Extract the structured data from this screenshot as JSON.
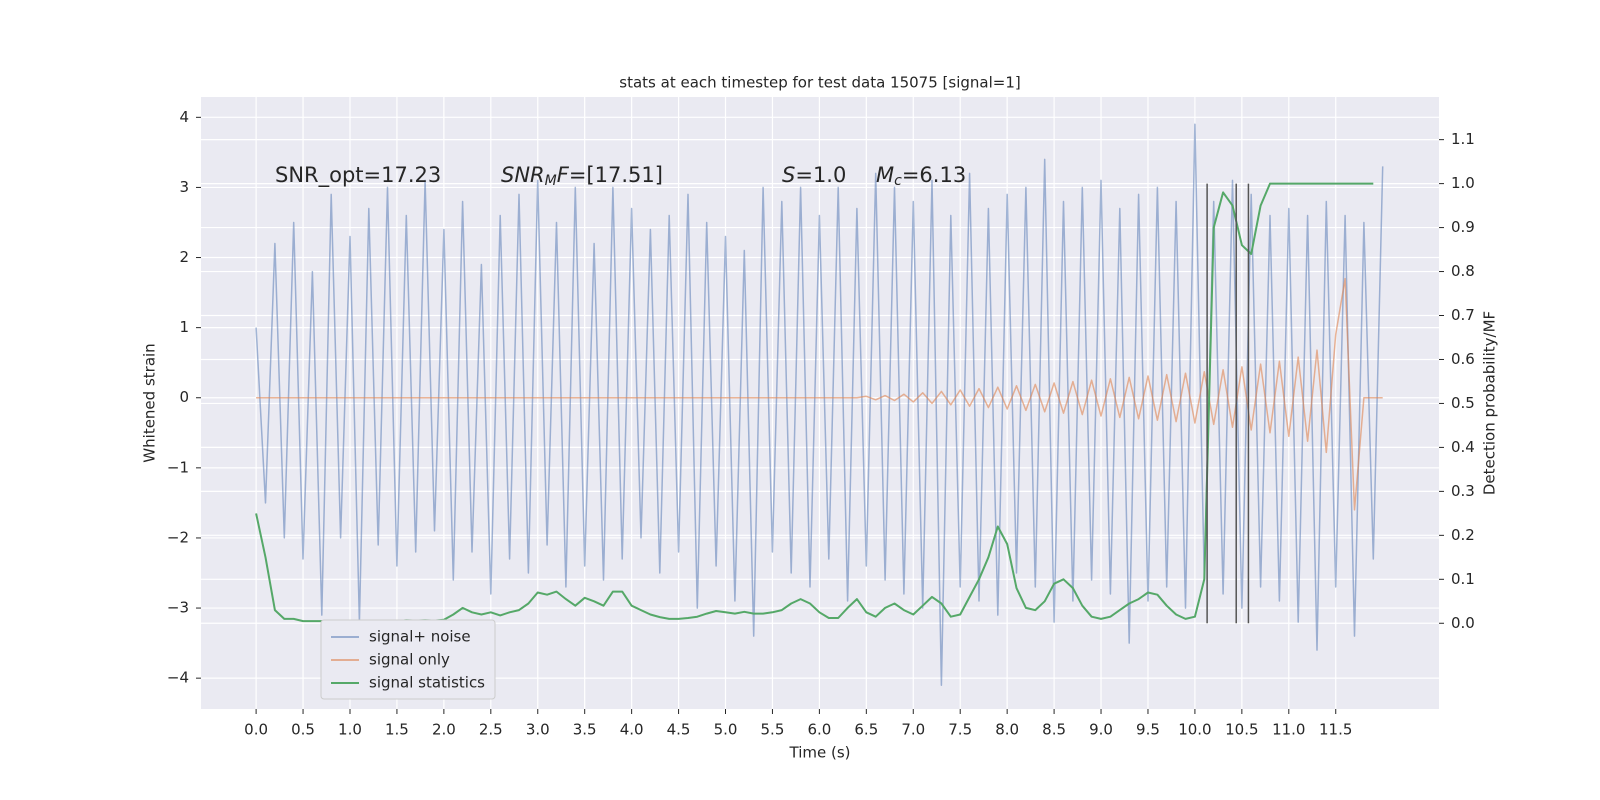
{
  "chart_data": {
    "type": "line",
    "title": "stats at each timestep for test data 15075 [signal=1]",
    "xlabel": "Time (s)",
    "ylabel": "Whitened strain",
    "y2label": "Detection probability/MF",
    "xlim": [
      -0.587,
      12.6
    ],
    "ylim": [
      -4.44,
      4.29
    ],
    "y2lim": [
      -0.195,
      1.197
    ],
    "xticks": [
      {
        "value": 0,
        "label": "0.0"
      },
      0.5,
      {
        "value": 1,
        "label": "1.0"
      },
      1.5,
      {
        "value": 2,
        "label": "2.0"
      },
      2.5,
      {
        "value": 3,
        "label": "3.0"
      },
      3.5,
      {
        "value": 4,
        "label": "4.0"
      },
      4.5,
      {
        "value": 5,
        "label": "5.0"
      },
      5.5,
      {
        "value": 6,
        "label": "6.0"
      },
      6.5,
      {
        "value": 7,
        "label": "7.0"
      },
      7.5,
      {
        "value": 8,
        "label": "8.0"
      },
      8.5,
      {
        "value": 9,
        "label": "9.0"
      },
      9.5,
      {
        "value": 10,
        "label": "10.0"
      },
      10.5,
      {
        "value": 11,
        "label": "11.0"
      },
      11.5
    ],
    "yticks": [
      {
        "value": -4,
        "label": "−4"
      },
      {
        "value": -3,
        "label": "−3"
      },
      {
        "value": -2,
        "label": "−2"
      },
      {
        "value": -1,
        "label": "−1"
      },
      0,
      1,
      2,
      3,
      4
    ],
    "y2ticks": [
      {
        "value": 0,
        "label": "0.0"
      },
      0.1,
      0.2,
      0.3,
      0.4,
      0.5,
      0.6,
      0.7,
      0.8,
      0.9,
      {
        "value": 1,
        "label": "1.0"
      },
      1.1
    ],
    "grid": true,
    "legend": "lower left",
    "x": [
      0.0,
      0.1,
      0.2,
      0.3,
      0.4,
      0.5,
      0.6,
      0.7,
      0.8,
      0.9,
      1.0,
      1.1,
      1.2,
      1.3,
      1.4,
      1.5,
      1.6,
      1.7,
      1.8,
      1.9,
      2.0,
      2.1,
      2.2,
      2.3,
      2.4,
      2.5,
      2.6,
      2.7,
      2.8,
      2.9,
      3.0,
      3.1,
      3.2,
      3.3,
      3.4,
      3.5,
      3.6,
      3.7,
      3.8,
      3.9,
      4.0,
      4.1,
      4.2,
      4.3,
      4.4,
      4.5,
      4.6,
      4.7,
      4.8,
      4.9,
      5.0,
      5.1,
      5.2,
      5.3,
      5.4,
      5.5,
      5.6,
      5.7,
      5.8,
      5.9,
      6.0,
      6.1,
      6.2,
      6.3,
      6.4,
      6.5,
      6.6,
      6.7,
      6.8,
      6.9,
      7.0,
      7.1,
      7.2,
      7.3,
      7.4,
      7.5,
      7.6,
      7.7,
      7.8,
      7.9,
      8.0,
      8.1,
      8.2,
      8.3,
      8.4,
      8.5,
      8.6,
      8.7,
      8.8,
      8.9,
      9.0,
      9.1,
      9.2,
      9.3,
      9.4,
      9.5,
      9.6,
      9.7,
      9.8,
      9.9,
      10.0,
      10.1,
      10.2,
      10.3,
      10.4,
      10.5,
      10.6,
      10.7,
      10.8,
      10.9,
      11.0,
      11.1,
      11.2,
      11.3,
      11.4,
      11.5,
      11.6,
      11.7,
      11.8,
      11.9,
      12.0
    ],
    "series": [
      {
        "name": "signal+ noise",
        "color": "#4c72b0",
        "opacity": 0.5,
        "values": [
          1.0,
          -1.5,
          2.2,
          -2.0,
          2.5,
          -2.3,
          1.8,
          -3.1,
          2.9,
          -2.0,
          2.3,
          -3.2,
          2.7,
          -2.1,
          3.0,
          -2.4,
          2.6,
          -2.2,
          3.1,
          -1.9,
          2.4,
          -2.6,
          2.8,
          -2.2,
          1.9,
          -2.8,
          2.6,
          -2.3,
          2.9,
          -2.5,
          3.1,
          -2.1,
          2.5,
          -2.7,
          3.0,
          -2.4,
          2.2,
          -2.6,
          3.0,
          -2.3,
          2.7,
          -2.0,
          2.4,
          -2.5,
          2.6,
          -2.2,
          2.9,
          -3.0,
          2.5,
          -2.4,
          2.3,
          -2.9,
          2.1,
          -3.4,
          3.0,
          -2.2,
          2.8,
          -2.5,
          3.0,
          -2.7,
          2.6,
          -2.3,
          3.0,
          -2.9,
          2.7,
          -2.4,
          3.2,
          -2.6,
          3.0,
          -2.8,
          2.8,
          -3.0,
          3.1,
          -4.1,
          2.6,
          -2.7,
          3.2,
          -2.9,
          2.7,
          -3.1,
          2.9,
          -2.5,
          3.0,
          -2.7,
          3.4,
          -3.2,
          2.8,
          -2.9,
          3.0,
          -2.6,
          3.1,
          -2.8,
          2.7,
          -3.5,
          2.9,
          -2.9,
          3.0,
          -2.7,
          2.8,
          -3.0,
          3.9,
          -2.6,
          2.8,
          -2.8,
          3.1,
          -3.0,
          2.9,
          -2.7,
          2.6,
          -2.9,
          2.7,
          -3.2,
          2.6,
          -3.6,
          2.8,
          -2.7,
          2.6,
          -3.4,
          2.5,
          -2.3,
          3.3
        ]
      },
      {
        "name": "signal only",
        "color": "#dd8452",
        "opacity": 0.6,
        "values": [
          0,
          0,
          0,
          0,
          0,
          0,
          0,
          0,
          0,
          0,
          0,
          0,
          0,
          0,
          0,
          0,
          0,
          0,
          0,
          0,
          0,
          0,
          0,
          0,
          0,
          0,
          0,
          0,
          0,
          0,
          0,
          0,
          0,
          0,
          0,
          0,
          0,
          0,
          0,
          0,
          0,
          0,
          0,
          0,
          0,
          0,
          0,
          0,
          0,
          0,
          0,
          0,
          0,
          0,
          0,
          0,
          0,
          0,
          0,
          0,
          0,
          0,
          0,
          0,
          0,
          0.02,
          -0.03,
          0.03,
          -0.04,
          0.05,
          -0.06,
          0.07,
          -0.08,
          0.09,
          -0.1,
          0.11,
          -0.12,
          0.13,
          -0.14,
          0.15,
          -0.16,
          0.17,
          -0.18,
          0.19,
          -0.2,
          0.21,
          -0.22,
          0.23,
          -0.24,
          0.25,
          -0.26,
          0.27,
          -0.28,
          0.29,
          -0.3,
          0.31,
          -0.32,
          0.33,
          -0.34,
          0.35,
          -0.36,
          0.37,
          -0.38,
          0.4,
          -0.42,
          0.44,
          -0.46,
          0.48,
          -0.5,
          0.52,
          -0.55,
          0.58,
          -0.62,
          0.68,
          -0.78,
          0.9,
          1.7,
          -1.6,
          0,
          0,
          0
        ]
      },
      {
        "name": "signal statistics",
        "color": "#55a868",
        "opacity": 1,
        "axis": "y2",
        "values": [
          0.25,
          0.15,
          0.03,
          0.01,
          0.01,
          0.005,
          0.005,
          0.005,
          0.005,
          0.004,
          0.004,
          0.004,
          0.005,
          0.005,
          0.006,
          0.005,
          0.007,
          0.006,
          0.007,
          0.006,
          0.008,
          0.02,
          0.035,
          0.025,
          0.02,
          0.025,
          0.018,
          0.025,
          0.03,
          0.045,
          0.07,
          0.065,
          0.072,
          0.055,
          0.04,
          0.058,
          0.05,
          0.04,
          0.072,
          0.072,
          0.04,
          0.03,
          0.02,
          0.014,
          0.01,
          0.01,
          0.012,
          0.015,
          0.022,
          0.028,
          0.025,
          0.022,
          0.026,
          0.022,
          0.022,
          0.025,
          0.03,
          0.045,
          0.055,
          0.045,
          0.025,
          0.012,
          0.012,
          0.035,
          0.055,
          0.025,
          0.015,
          0.035,
          0.045,
          0.03,
          0.02,
          0.04,
          0.06,
          0.045,
          0.015,
          0.02,
          0.06,
          0.1,
          0.15,
          0.22,
          0.18,
          0.08,
          0.035,
          0.03,
          0.05,
          0.09,
          0.1,
          0.08,
          0.04,
          0.015,
          0.01,
          0.015,
          0.03,
          0.045,
          0.055,
          0.07,
          0.065,
          0.04,
          0.02,
          0.01,
          0.015,
          0.1,
          0.9,
          0.98,
          0.95,
          0.86,
          0.84,
          0.95,
          1.0,
          1.0,
          1.0,
          1.0,
          1.0,
          1.0,
          1.0,
          1.0,
          1.0,
          1.0,
          1.0,
          1.0,
          null
        ]
      }
    ],
    "vlines": {
      "x": [
        10.13,
        10.44,
        10.57
      ],
      "y2": [
        0,
        1.0
      ],
      "color": "#555555"
    },
    "annotations": [
      {
        "parts": [
          {
            "text": "SNR_opt=17.23"
          }
        ]
      },
      {
        "parts": [
          {
            "text": "SNR",
            "italic": true
          },
          {
            "text": "M",
            "italic": true,
            "sub": true
          },
          {
            "text": "F",
            "italic": true
          },
          {
            "text": "=[17.51]"
          }
        ]
      },
      {
        "parts": [
          {
            "text": "S",
            "italic": true
          },
          {
            "text": "=1.0"
          }
        ]
      },
      {
        "parts": [
          {
            "text": "M",
            "italic": true
          },
          {
            "text": "c",
            "italic": true,
            "sub": true
          },
          {
            "text": "=6.13"
          }
        ]
      }
    ]
  }
}
